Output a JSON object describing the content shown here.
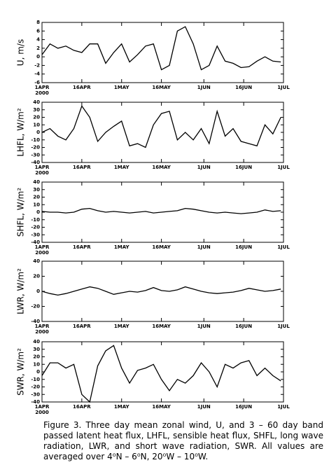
{
  "chart_data": [
    {
      "type": "line",
      "ylabel": "U, m/s",
      "color": "#000000",
      "year": "2000",
      "x": [
        0,
        3,
        6,
        9,
        12,
        15,
        18,
        21,
        24,
        27,
        30,
        33,
        36,
        39,
        42,
        45,
        48,
        51,
        54,
        57,
        60,
        63,
        66,
        69,
        72,
        75,
        78,
        81,
        84,
        87,
        90
      ],
      "values": [
        0.5,
        3,
        2,
        2.5,
        1.5,
        1,
        3,
        3,
        -1.5,
        1,
        3,
        -1.2,
        0.5,
        2.5,
        3,
        -3,
        -2,
        6,
        7,
        3,
        -3,
        -2,
        2.5,
        -1,
        -1.5,
        -2.5,
        -2.3,
        -1,
        0,
        -1,
        -1.2
      ],
      "xlim": [
        0,
        91
      ],
      "xticks": [
        {
          "value": 0,
          "label": "1APR"
        },
        {
          "value": 15,
          "label": "16APR"
        },
        {
          "value": 30,
          "label": "1MAY"
        },
        {
          "value": 45,
          "label": "16MAY"
        },
        {
          "value": 61,
          "label": "1JUN"
        },
        {
          "value": 76,
          "label": "16JUN"
        },
        {
          "value": 91,
          "label": "1JUL"
        }
      ],
      "ylim": [
        -6,
        8
      ],
      "yticks": [
        -6,
        -4,
        -2,
        0,
        2,
        4,
        6,
        8
      ]
    },
    {
      "type": "line",
      "ylabel": "LHFL, W/m²",
      "color": "#000000",
      "year": "2000",
      "x": [
        0,
        3,
        6,
        9,
        12,
        15,
        18,
        21,
        24,
        27,
        30,
        33,
        36,
        39,
        42,
        45,
        48,
        51,
        54,
        57,
        60,
        63,
        66,
        69,
        72,
        75,
        78,
        81,
        84,
        87,
        90
      ],
      "values": [
        0,
        5,
        -5,
        -10,
        5,
        35,
        20,
        -12,
        0,
        8,
        15,
        -18,
        -15,
        -20,
        10,
        25,
        28,
        -10,
        0,
        -10,
        5,
        -15,
        28,
        -5,
        5,
        -12,
        -15,
        -18,
        10,
        -2,
        20
      ],
      "xlim": [
        0,
        91
      ],
      "xticks": [
        {
          "value": 0,
          "label": "1APR"
        },
        {
          "value": 15,
          "label": "16APR"
        },
        {
          "value": 30,
          "label": "1MAY"
        },
        {
          "value": 45,
          "label": "16MAY"
        },
        {
          "value": 61,
          "label": "1JUN"
        },
        {
          "value": 76,
          "label": "16JUN"
        },
        {
          "value": 91,
          "label": "1JUL"
        }
      ],
      "ylim": [
        -40,
        40
      ],
      "yticks": [
        -40,
        -30,
        -20,
        -10,
        0,
        10,
        20,
        30,
        40
      ]
    },
    {
      "type": "line",
      "ylabel": "SHFL, W/m²",
      "color": "#000000",
      "year": "2000",
      "x": [
        0,
        3,
        6,
        9,
        12,
        15,
        18,
        21,
        24,
        27,
        30,
        33,
        36,
        39,
        42,
        45,
        48,
        51,
        54,
        57,
        60,
        63,
        66,
        69,
        72,
        75,
        78,
        81,
        84,
        87,
        90
      ],
      "values": [
        1,
        0,
        0,
        -1,
        0,
        4,
        5,
        2,
        0,
        1,
        0,
        -1,
        0,
        1,
        -1,
        0,
        1,
        2,
        5,
        4,
        2,
        0,
        -1,
        0,
        -1,
        -2,
        -1,
        0,
        3,
        1,
        2
      ],
      "xlim": [
        0,
        91
      ],
      "xticks": [
        {
          "value": 0,
          "label": "1APR"
        },
        {
          "value": 15,
          "label": "16APR"
        },
        {
          "value": 30,
          "label": "1MAY"
        },
        {
          "value": 45,
          "label": "16MAY"
        },
        {
          "value": 61,
          "label": "1JUN"
        },
        {
          "value": 76,
          "label": "16JUN"
        },
        {
          "value": 91,
          "label": "1JUL"
        }
      ],
      "ylim": [
        -40,
        40
      ],
      "yticks": [
        -40,
        -30,
        -20,
        -10,
        0,
        10,
        20,
        30,
        40
      ]
    },
    {
      "type": "line",
      "ylabel": "LWR, W/m²",
      "color": "#000000",
      "year": "2000",
      "x": [
        0,
        3,
        6,
        9,
        12,
        15,
        18,
        21,
        24,
        27,
        30,
        33,
        36,
        39,
        42,
        45,
        48,
        51,
        54,
        57,
        60,
        63,
        66,
        69,
        72,
        75,
        78,
        81,
        84,
        87,
        90
      ],
      "values": [
        0,
        -3,
        -5,
        -3,
        0,
        3,
        6,
        4,
        0,
        -4,
        -2,
        0,
        -1,
        1,
        5,
        1,
        0,
        2,
        6,
        3,
        0,
        -2,
        -3,
        -2,
        -1,
        1,
        4,
        2,
        0,
        1,
        3
      ],
      "xlim": [
        0,
        91
      ],
      "xticks": [
        {
          "value": 0,
          "label": "1APR"
        },
        {
          "value": 15,
          "label": "16APR"
        },
        {
          "value": 30,
          "label": "1MAY"
        },
        {
          "value": 45,
          "label": "16MAY"
        },
        {
          "value": 61,
          "label": "1JUN"
        },
        {
          "value": 76,
          "label": "16JUN"
        },
        {
          "value": 91,
          "label": "1JUL"
        }
      ],
      "ylim": [
        -40,
        40
      ],
      "yticks": [
        -40,
        -20,
        0,
        20,
        40
      ]
    },
    {
      "type": "line",
      "ylabel": "SWR, W/m²",
      "color": "#000000",
      "year": "2000",
      "x": [
        0,
        3,
        6,
        9,
        12,
        15,
        18,
        21,
        24,
        27,
        30,
        33,
        36,
        39,
        42,
        45,
        48,
        51,
        54,
        57,
        60,
        63,
        66,
        69,
        72,
        75,
        78,
        81,
        84,
        87,
        90
      ],
      "values": [
        -5,
        12,
        12,
        5,
        10,
        -30,
        -40,
        8,
        28,
        35,
        5,
        -15,
        2,
        5,
        10,
        -10,
        -25,
        -10,
        -15,
        -5,
        12,
        0,
        -20,
        10,
        5,
        12,
        15,
        -5,
        5,
        -5,
        -12
      ],
      "xlim": [
        0,
        91
      ],
      "xticks": [
        {
          "value": 0,
          "label": "1APR"
        },
        {
          "value": 15,
          "label": "16APR"
        },
        {
          "value": 30,
          "label": "1MAY"
        },
        {
          "value": 45,
          "label": "16MAY"
        },
        {
          "value": 61,
          "label": "1JUN"
        },
        {
          "value": 76,
          "label": "16JUN"
        },
        {
          "value": 91,
          "label": "1JUL"
        }
      ],
      "ylim": [
        -40,
        40
      ],
      "yticks": [
        -40,
        -30,
        -20,
        -10,
        0,
        10,
        20,
        30,
        40
      ]
    }
  ],
  "caption": "Figure 3. Three day mean zonal wind, U, and 3 – 60 day band passed latent heat flux, LHFL, sensible heat flux, SHFL, long wave radiation, LWR, and short wave radiation, SWR. All values are averaged over 4⁰N – 6⁰N, 20⁰W – 10⁰W."
}
